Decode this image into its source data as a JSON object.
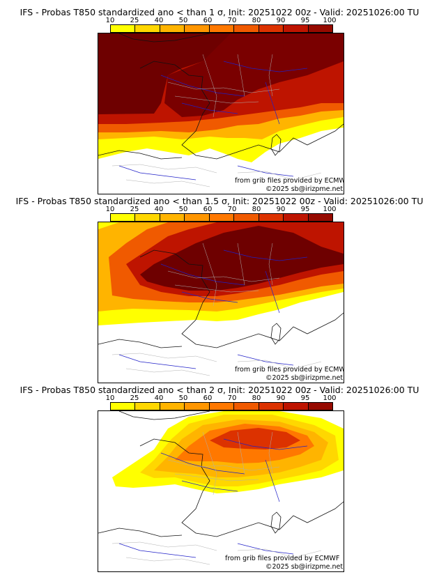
{
  "panels": [
    {
      "title": "IFS - Probas T850  standardized ano < than 1 σ, Init: 20251022 00z - Valid: 20251026:00 TU",
      "credit_source": "from grib files provided by ECMWF",
      "credit_copyright": "©2025 sb@irizpme.net"
    },
    {
      "title": "IFS - Probas T850  standardized ano < than 1.5 σ, Init: 20251022 00z - Valid: 20251026:00 TU",
      "credit_source": "from grib files provided by ECMWF",
      "credit_copyright": "©2025 sb@irizpme.net"
    },
    {
      "title": "IFS - Probas T850  standardized ano < than 2 σ, Init: 20251022 00z - Valid: 20251026:00 TU",
      "credit_source": "from grib files provided by ECMWF",
      "credit_copyright": "©2025 sb@irizpme.net"
    }
  ],
  "colorbar": {
    "ticks": [
      "10",
      "25",
      "40",
      "50",
      "60",
      "70",
      "80",
      "90",
      "95",
      "100"
    ],
    "colors": [
      "#ffff00",
      "#ffd700",
      "#ffb400",
      "#ff9600",
      "#ff7800",
      "#f05a00",
      "#dc3200",
      "#be1400",
      "#960a00",
      "#6e0000"
    ]
  }
}
